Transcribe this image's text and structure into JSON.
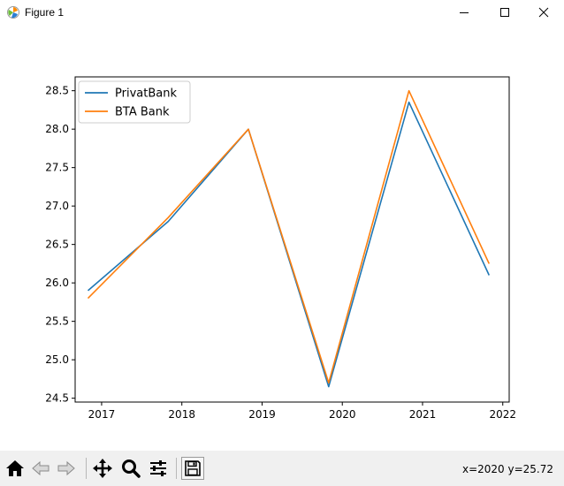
{
  "window": {
    "title": "Figure 1",
    "icon": "matplotlib-figure-icon"
  },
  "toolbar": {
    "buttons": [
      "home-icon",
      "back-arrow-icon",
      "forward-arrow-icon",
      "pan-icon",
      "zoom-icon",
      "configure-subplots-icon",
      "save-icon"
    ],
    "coords": "x=2020 y=25.72"
  },
  "chart_data": {
    "type": "line",
    "x": [
      2016.83,
      2017.83,
      2018.83,
      2019.83,
      2020.83,
      2021.83
    ],
    "series": [
      {
        "name": "PrivatBank",
        "values": [
          25.9,
          26.8,
          28.0,
          24.65,
          28.35,
          26.1
        ],
        "color": "#1f77b4"
      },
      {
        "name": "BTA Bank",
        "values": [
          25.8,
          26.85,
          28.0,
          24.7,
          28.5,
          26.25
        ],
        "color": "#ff7f0e"
      }
    ],
    "xticks": [
      "2017",
      "2018",
      "2019",
      "2020",
      "2021",
      "2022"
    ],
    "yticks": [
      "24.5",
      "25.0",
      "25.5",
      "26.0",
      "26.5",
      "27.0",
      "27.5",
      "28.0",
      "28.5"
    ],
    "xlim": [
      2016.67,
      2022.08
    ],
    "ylim": [
      24.45,
      28.68
    ],
    "legend": "top-left",
    "grid": false,
    "title": "",
    "xlabel": "",
    "ylabel": ""
  }
}
